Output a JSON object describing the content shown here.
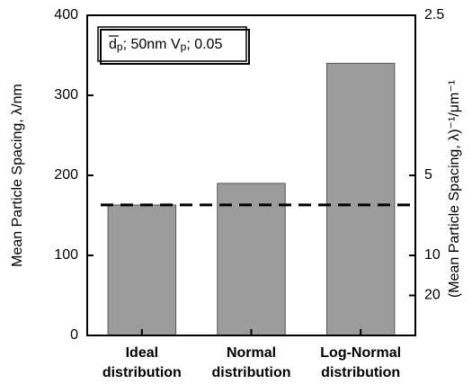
{
  "chart_data": {
    "type": "bar",
    "categories": [
      "Ideal distribution",
      "Normal distribution",
      "Log-Normal distribution"
    ],
    "values": [
      163,
      190,
      340
    ],
    "color": "#9c9c9c",
    "ylim": [
      0,
      400
    ],
    "yticks": [
      0,
      100,
      200,
      300,
      400
    ],
    "y2scale": "reciprocal",
    "y2ticks": [
      2.5,
      5,
      10,
      20
    ],
    "ylabel": "Mean Particle Spacing, λ/nm",
    "y2label": "(Mean Particle Spacing, λ)⁻¹/μm⁻¹",
    "reference_line": 163,
    "annotation": [
      "d",
      "p",
      "; 50nm  V",
      "p",
      "; 0.05"
    ]
  }
}
